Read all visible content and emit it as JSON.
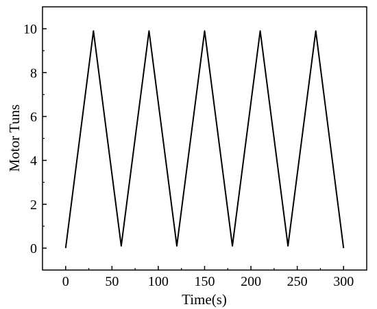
{
  "chart_data": {
    "type": "line",
    "title": "",
    "xlabel": "Time(s)",
    "ylabel": "Motor Tuns",
    "xlim": [
      -25,
      325
    ],
    "ylim": [
      -1,
      11
    ],
    "x_ticks": [
      0,
      50,
      100,
      150,
      200,
      250,
      300
    ],
    "y_ticks": [
      0,
      2,
      4,
      6,
      8,
      10
    ],
    "grid": false,
    "legend": "none",
    "line_color": "#000000",
    "series": [
      {
        "x": [
          0,
          30,
          60,
          90,
          120,
          150,
          180,
          210,
          240,
          270,
          300
        ],
        "y": [
          0,
          9.9,
          0.1,
          9.9,
          0.1,
          9.9,
          0.1,
          9.9,
          0.1,
          9.9,
          0
        ]
      }
    ]
  }
}
